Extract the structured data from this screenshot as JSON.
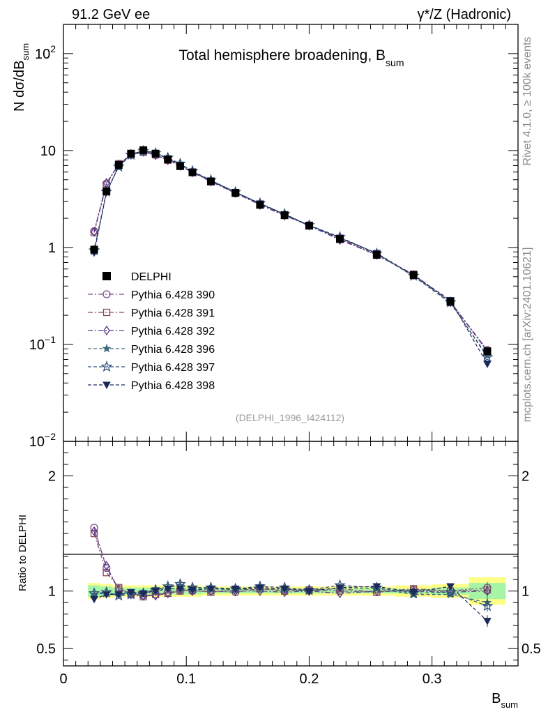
{
  "header": {
    "left": "91.2 GeV ee",
    "right": "γ*/Z (Hadronic)"
  },
  "side_labels": {
    "rivet": "Rivet 4.1.0, ≥ 100k events",
    "mcplots": "mcplots.cern.ch [arXiv:2401.10621]"
  },
  "chart_data": {
    "type": "line",
    "title": "Total hemisphere broadening, B",
    "title_sub": "sum",
    "analysis_tag": "(DELPHI_1996_I424112)",
    "main_ylabel": {
      "prefix": "N  dσ/dB",
      "sub": "sum"
    },
    "ratio_ylabel": "Ratio to DELPHI",
    "xlabel": {
      "main": "B",
      "sub": "sum"
    },
    "xlim": [
      0,
      0.37
    ],
    "main_ylim": [
      0.01,
      200
    ],
    "ratio_ylim": [
      0.35,
      2.3
    ],
    "x_ticks": [
      {
        "v": 0,
        "label": "0"
      },
      {
        "v": 0.1,
        "label": "0.1"
      },
      {
        "v": 0.2,
        "label": "0.2"
      },
      {
        "v": 0.3,
        "label": "0.3"
      }
    ],
    "main_y_ticks": [
      {
        "v": 100,
        "base": "10",
        "exp": "2"
      },
      {
        "v": 10,
        "base": "10",
        "exp": ""
      },
      {
        "v": 1,
        "base": "1",
        "exp": ""
      },
      {
        "v": 0.1,
        "base": "10",
        "exp": "−1"
      },
      {
        "v": 0.01,
        "base": "10",
        "exp": "−2"
      }
    ],
    "ratio_y_ticks": [
      {
        "v": 2,
        "label": "2"
      },
      {
        "v": 1,
        "label": "1"
      },
      {
        "v": 0.5,
        "label": "0.5"
      }
    ],
    "x": [
      0.025,
      0.035,
      0.045,
      0.055,
      0.065,
      0.075,
      0.085,
      0.095,
      0.105,
      0.12,
      0.14,
      0.16,
      0.18,
      0.2,
      0.225,
      0.255,
      0.285,
      0.315,
      0.345
    ],
    "data": {
      "name": "DELPHI",
      "values": [
        0.95,
        3.8,
        7.1,
        9.3,
        10.1,
        9.3,
        8.1,
        6.9,
        5.95,
        4.8,
        3.65,
        2.75,
        2.15,
        1.68,
        1.22,
        0.84,
        0.52,
        0.275,
        0.085
      ],
      "errors": [
        0.05,
        0.1,
        0.12,
        0.15,
        0.15,
        0.14,
        0.12,
        0.1,
        0.09,
        0.07,
        0.05,
        0.04,
        0.03,
        0.03,
        0.02,
        0.015,
        0.01,
        0.007,
        0.006
      ],
      "color": "#000000"
    },
    "data_band_ratio": {
      "inner": [
        0.05,
        0.04,
        0.03,
        0.03,
        0.03,
        0.03,
        0.03,
        0.03,
        0.03,
        0.02,
        0.02,
        0.02,
        0.02,
        0.02,
        0.02,
        0.02,
        0.02,
        0.03,
        0.07
      ],
      "outer": [
        0.07,
        0.06,
        0.05,
        0.05,
        0.05,
        0.05,
        0.05,
        0.05,
        0.05,
        0.04,
        0.04,
        0.04,
        0.04,
        0.04,
        0.04,
        0.04,
        0.05,
        0.06,
        0.12
      ],
      "inner_color": "#a6f5a6",
      "outer_color": "#ffff88"
    },
    "series": [
      {
        "name": "Pythia 6.428 390",
        "marker": "circle-open",
        "dash": "dashdot",
        "color": "#7b4a8b",
        "ratio": [
          1.55,
          1.2,
          1.02,
          0.98,
          0.96,
          0.97,
          0.99,
          1.01,
          1.0,
          1.0,
          0.99,
          1.02,
          1.01,
          1.01,
          1.0,
          0.99,
          1.01,
          1.0,
          1.03
        ]
      },
      {
        "name": "Pythia 6.428 391",
        "marker": "square-open",
        "dash": "dashdot",
        "color": "#8a4a5a",
        "ratio": [
          1.5,
          1.16,
          1.03,
          0.97,
          0.95,
          0.97,
          0.98,
          1.0,
          1.01,
          0.99,
          1.01,
          1.02,
          1.0,
          1.01,
          1.02,
          0.99,
          1.02,
          1.0,
          1.01
        ]
      },
      {
        "name": "Pythia 6.428 392",
        "marker": "diamond-open",
        "dash": "dashdot",
        "color": "#5b3a8a",
        "ratio": [
          1.52,
          1.22,
          1.01,
          0.97,
          0.96,
          0.96,
          0.98,
          1.01,
          1.0,
          1.0,
          1.0,
          1.0,
          0.99,
          1.0,
          0.98,
          1.0,
          1.0,
          0.99,
          1.0
        ]
      },
      {
        "name": "Pythia 6.428 396",
        "marker": "star-filled",
        "dash": "dashed",
        "color": "#3d6a78",
        "ratio": [
          0.97,
          0.98,
          0.97,
          0.98,
          0.99,
          1.02,
          1.03,
          1.05,
          1.02,
          1.02,
          1.01,
          1.03,
          1.02,
          1.0,
          1.03,
          1.02,
          0.97,
          0.97,
          0.9
        ]
      },
      {
        "name": "Pythia 6.428 397",
        "marker": "star-open",
        "dash": "dashed",
        "color": "#2f4f7a",
        "ratio": [
          0.98,
          0.99,
          0.96,
          0.97,
          0.98,
          1.01,
          1.04,
          1.06,
          1.03,
          1.03,
          1.02,
          1.04,
          1.03,
          1.01,
          1.05,
          1.03,
          0.98,
          0.99,
          0.87
        ]
      },
      {
        "name": "Pythia 6.428 398",
        "marker": "triangle-down-filled",
        "dash": "dashed",
        "color": "#1a2a5a",
        "ratio": [
          0.93,
          0.97,
          0.97,
          0.99,
          0.98,
          1.0,
          1.02,
          1.02,
          1.01,
          1.02,
          1.02,
          1.03,
          1.02,
          1.0,
          1.03,
          1.04,
          0.99,
          1.04,
          0.74
        ]
      }
    ]
  }
}
